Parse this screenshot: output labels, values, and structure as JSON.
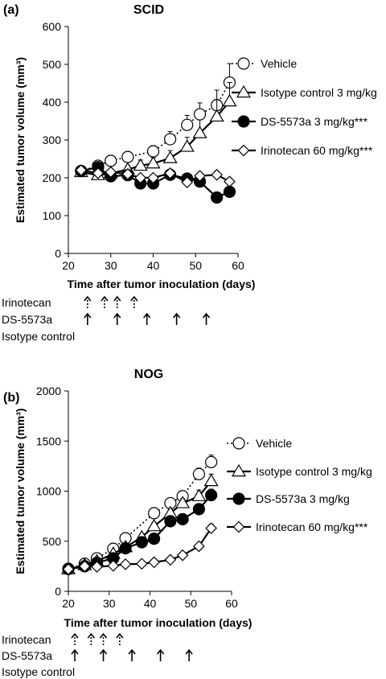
{
  "chart_data": [
    {
      "type": "line",
      "panel": "(a)",
      "title": "SCID",
      "xlabel": "Time after tumor inoculation (days)",
      "ylabel": "Estimated tumor volume (mm³)",
      "xlim": [
        20,
        60
      ],
      "ylim": [
        0,
        600
      ],
      "xticks": [
        20,
        30,
        40,
        50,
        60
      ],
      "yticks": [
        0,
        100,
        200,
        300,
        400,
        500,
        600
      ],
      "legend_position": "right",
      "series": [
        {
          "name": "Vehicle",
          "marker": "circle-open",
          "line": "dotted",
          "x": [
            23,
            27,
            30,
            34,
            40,
            44,
            48,
            51,
            55,
            58
          ],
          "y": [
            218,
            232,
            245,
            255,
            270,
            302,
            340,
            368,
            392,
            452
          ],
          "err": [
            0,
            10,
            10,
            10,
            15,
            20,
            25,
            30,
            40,
            50
          ]
        },
        {
          "name": "Isotype control  3 mg/kg",
          "marker": "triangle-open",
          "line": "solid",
          "x": [
            23,
            27,
            30,
            34,
            37,
            40,
            44,
            48,
            51,
            55,
            58
          ],
          "y": [
            215,
            207,
            212,
            222,
            232,
            238,
            252,
            282,
            318,
            362,
            402
          ],
          "err": [
            0,
            10,
            10,
            10,
            15,
            15,
            20,
            25,
            35,
            45,
            50
          ]
        },
        {
          "name": "DS-5573a  3 mg/kg***",
          "marker": "circle-filled",
          "line": "solid",
          "x": [
            23,
            27,
            30,
            34,
            37,
            40,
            44,
            48,
            51,
            55,
            58
          ],
          "y": [
            218,
            228,
            204,
            207,
            185,
            185,
            208,
            198,
            190,
            148,
            163
          ],
          "err": [
            0,
            8,
            8,
            8,
            10,
            10,
            10,
            10,
            10,
            10,
            10
          ]
        },
        {
          "name": "Irinotecan  60 mg/kg***",
          "marker": "diamond-open",
          "line": "solid",
          "x": [
            23,
            27,
            30,
            34,
            37,
            40,
            44,
            48,
            51,
            55,
            58
          ],
          "y": [
            220,
            212,
            215,
            210,
            200,
            200,
            212,
            188,
            205,
            208,
            190
          ],
          "err": [
            0,
            8,
            8,
            8,
            8,
            8,
            8,
            8,
            8,
            10,
            10
          ]
        }
      ],
      "dosing": [
        {
          "label": "Irinotecan",
          "style": "dotted-arrow",
          "days": [
            23,
            27,
            30,
            34
          ]
        },
        {
          "label": "DS-5573a",
          "style": "arrow",
          "days": [
            23,
            30,
            37,
            44,
            51
          ]
        },
        {
          "label": "Isotype control",
          "style": "arrow",
          "days": []
        }
      ]
    },
    {
      "type": "line",
      "panel": "(b)",
      "title": "NOG",
      "xlabel": "Time after tumor inoculation (days)",
      "ylabel": "Estimated tumor volume (mm³)",
      "xlim": [
        20,
        60
      ],
      "ylim": [
        0,
        2000
      ],
      "xticks": [
        20,
        30,
        40,
        50,
        60
      ],
      "yticks": [
        0,
        500,
        1000,
        1500,
        2000
      ],
      "legend_position": "right",
      "series": [
        {
          "name": "Vehicle",
          "marker": "circle-open",
          "line": "dotted",
          "x": [
            20,
            24,
            27,
            31,
            34,
            41,
            45,
            48,
            52,
            55
          ],
          "y": [
            225,
            275,
            330,
            425,
            530,
            780,
            880,
            950,
            1170,
            1290
          ],
          "err": [
            0,
            15,
            20,
            25,
            30,
            40,
            40,
            45,
            60,
            70
          ]
        },
        {
          "name": "Isotype control  3 mg/kg",
          "marker": "triangle-open",
          "line": "solid",
          "x": [
            20,
            24,
            27,
            31,
            34,
            38,
            41,
            45,
            48,
            52,
            55
          ],
          "y": [
            220,
            262,
            300,
            375,
            440,
            540,
            650,
            780,
            880,
            950,
            1100
          ],
          "err": [
            0,
            15,
            20,
            25,
            30,
            35,
            40,
            40,
            45,
            60,
            70
          ]
        },
        {
          "name": "DS-5573a  3 mg/kg",
          "marker": "circle-filled",
          "line": "solid",
          "x": [
            20,
            24,
            27,
            31,
            34,
            38,
            41,
            45,
            48,
            52,
            55
          ],
          "y": [
            222,
            250,
            285,
            330,
            430,
            490,
            525,
            700,
            720,
            820,
            960
          ],
          "err": [
            0,
            15,
            20,
            20,
            25,
            30,
            30,
            35,
            40,
            45,
            60
          ]
        },
        {
          "name": "Irinotecan  60 mg/kg***",
          "marker": "diamond-open",
          "line": "solid",
          "x": [
            20,
            24,
            27,
            31,
            34,
            38,
            41,
            45,
            48,
            52,
            55
          ],
          "y": [
            220,
            250,
            245,
            255,
            270,
            275,
            290,
            315,
            360,
            450,
            630
          ],
          "err": [
            0,
            10,
            10,
            10,
            10,
            10,
            15,
            15,
            20,
            30,
            40
          ]
        }
      ],
      "dosing": [
        {
          "label": "Irinotecan",
          "style": "dotted-arrow",
          "days": [
            20,
            24,
            27,
            31
          ]
        },
        {
          "label": "DS-5573a",
          "style": "arrow",
          "days": [
            20,
            27,
            34,
            41,
            48
          ]
        },
        {
          "label": "Isotype control",
          "style": "arrow",
          "days": []
        }
      ]
    }
  ]
}
